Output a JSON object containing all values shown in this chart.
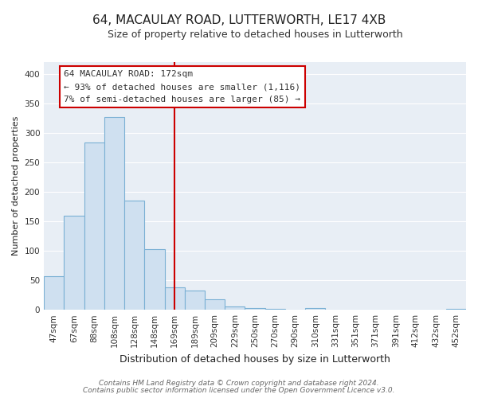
{
  "title": "64, MACAULAY ROAD, LUTTERWORTH, LE17 4XB",
  "subtitle": "Size of property relative to detached houses in Lutterworth",
  "xlabel": "Distribution of detached houses by size in Lutterworth",
  "ylabel": "Number of detached properties",
  "bar_labels": [
    "47sqm",
    "67sqm",
    "88sqm",
    "108sqm",
    "128sqm",
    "148sqm",
    "169sqm",
    "189sqm",
    "209sqm",
    "229sqm",
    "250sqm",
    "270sqm",
    "290sqm",
    "310sqm",
    "331sqm",
    "351sqm",
    "371sqm",
    "391sqm",
    "412sqm",
    "432sqm",
    "452sqm"
  ],
  "bar_values": [
    57,
    160,
    284,
    327,
    185,
    103,
    38,
    33,
    18,
    6,
    3,
    2,
    0,
    3,
    0,
    0,
    0,
    0,
    0,
    0,
    2
  ],
  "bar_color": "#cfe0f0",
  "bar_edge_color": "#7ab0d4",
  "ylim": [
    0,
    420
  ],
  "yticks": [
    0,
    50,
    100,
    150,
    200,
    250,
    300,
    350,
    400
  ],
  "vline_x_index": 6,
  "vline_color": "#cc0000",
  "annotation_title": "64 MACAULAY ROAD: 172sqm",
  "annotation_line1": "← 93% of detached houses are smaller (1,116)",
  "annotation_line2": "7% of semi-detached houses are larger (85) →",
  "annotation_box_color": "#ffffff",
  "annotation_box_edge": "#cc0000",
  "footer1": "Contains HM Land Registry data © Crown copyright and database right 2024.",
  "footer2": "Contains public sector information licensed under the Open Government Licence v3.0.",
  "plot_bg_color": "#e8eef5",
  "fig_bg_color": "#ffffff",
  "grid_color": "#ffffff",
  "title_fontsize": 11,
  "subtitle_fontsize": 9,
  "xlabel_fontsize": 9,
  "ylabel_fontsize": 8,
  "tick_fontsize": 7.5,
  "annotation_fontsize": 8,
  "footer_fontsize": 6.5
}
